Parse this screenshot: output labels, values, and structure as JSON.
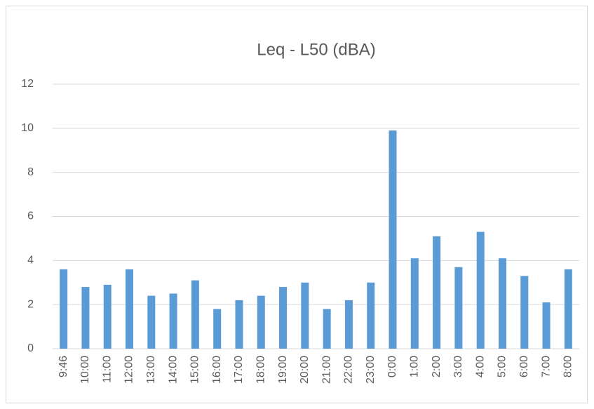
{
  "chart_data": {
    "type": "bar",
    "title": "Leq - L50 (dBA)",
    "categories": [
      "9:46",
      "10:00",
      "11:00",
      "12:00",
      "13:00",
      "14:00",
      "15:00",
      "16:00",
      "17:00",
      "18:00",
      "19:00",
      "20:00",
      "21:00",
      "22:00",
      "23:00",
      "0:00",
      "1:00",
      "2:00",
      "3:00",
      "4:00",
      "5:00",
      "6:00",
      "7:00",
      "8:00"
    ],
    "values": [
      3.6,
      2.8,
      2.9,
      3.6,
      2.4,
      2.5,
      3.1,
      1.8,
      2.2,
      2.4,
      2.8,
      3.0,
      1.8,
      2.2,
      3.0,
      9.9,
      4.1,
      5.1,
      3.7,
      5.3,
      4.1,
      3.3,
      2.1,
      3.6
    ],
    "color": "#5b9bd5",
    "ylim": [
      0,
      12
    ],
    "yticks": [
      0,
      2,
      4,
      6,
      8,
      10,
      12
    ],
    "grid": true
  }
}
